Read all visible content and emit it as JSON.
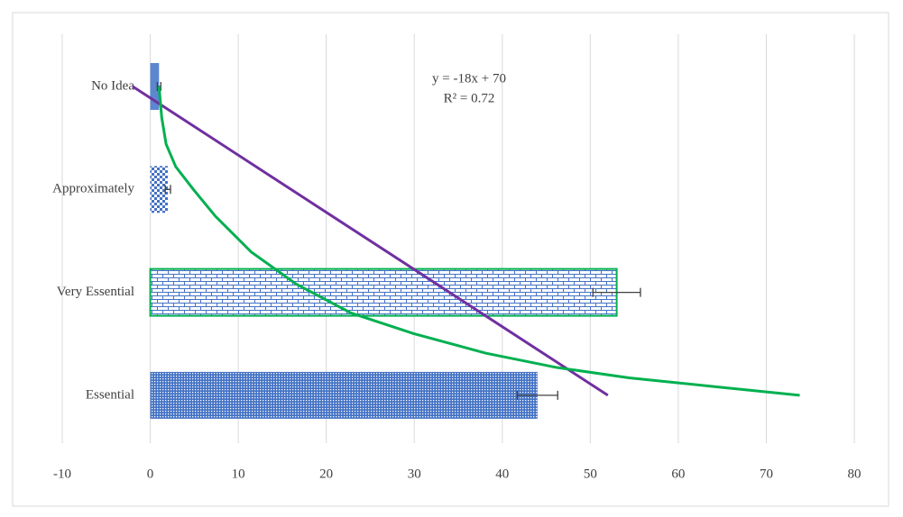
{
  "chart_data": {
    "type": "bar",
    "orientation": "horizontal",
    "categories": [
      "No Idea",
      "Approximately",
      "Very Essential",
      "Essential"
    ],
    "values": [
      1,
      2,
      53,
      44
    ],
    "errors": [
      0.2,
      0.3,
      2.7,
      2.3
    ],
    "xlim": [
      -10,
      80
    ],
    "xticks": [
      -10,
      0,
      10,
      20,
      30,
      40,
      50,
      60,
      70,
      80
    ],
    "grid": true,
    "trendline": {
      "slope": -18,
      "intercept": 70,
      "color": "#7030a0",
      "equation": "y = -18x + 70",
      "r_squared_label": "R² = 0.72"
    },
    "curve": {
      "color": "#00b050",
      "positions": [
        0,
        0.3,
        0.56,
        0.78,
        1.0,
        1.26,
        1.61,
        1.92,
        2.2,
        2.4,
        2.59,
        2.73,
        2.83,
        2.92,
        3.0
      ],
      "values": [
        1.0,
        1.3,
        1.8,
        2.9,
        4.9,
        7.4,
        11.5,
        16.6,
        22.8,
        29.9,
        38.1,
        46.2,
        54.4,
        64.6,
        73.8
      ]
    }
  }
}
